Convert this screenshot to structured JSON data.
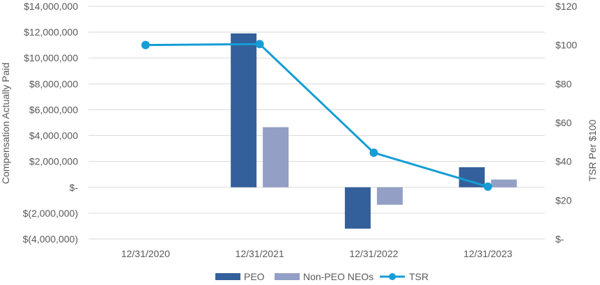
{
  "chart_data": {
    "type": "bar",
    "categories": [
      "12/31/2020",
      "12/31/2021",
      "12/31/2022",
      "12/31/2023"
    ],
    "series": [
      {
        "name": "PEO",
        "type": "bar",
        "axis": "left",
        "color": "#33609A",
        "values": [
          null,
          11900000,
          -3200000,
          1550000
        ]
      },
      {
        "name": "Non-PEO NEOs",
        "type": "bar",
        "axis": "left",
        "color": "#939FC4",
        "values": [
          null,
          4650000,
          -1350000,
          600000
        ]
      },
      {
        "name": "TSR",
        "type": "line",
        "axis": "right",
        "color": "#159DD5",
        "values": [
          100,
          100.5,
          44.5,
          27
        ]
      }
    ],
    "ylabel": "Compensation Actually Paid",
    "y2label": "TSR Per $100",
    "ylim": [
      -4000000,
      14000000
    ],
    "y2lim": [
      0,
      120
    ],
    "yticks": [
      "$(4,000,000)",
      "$(2,000,000)",
      "$-",
      "$2,000,000",
      "$4,000,000",
      "$6,000,000",
      "$8,000,000",
      "$10,000,000",
      "$12,000,000",
      "$14,000,000"
    ],
    "y2ticks": [
      "$-",
      "$20",
      "$40",
      "$60",
      "$80",
      "$100",
      "$120"
    ],
    "grid": true,
    "legend_position": "bottom"
  }
}
